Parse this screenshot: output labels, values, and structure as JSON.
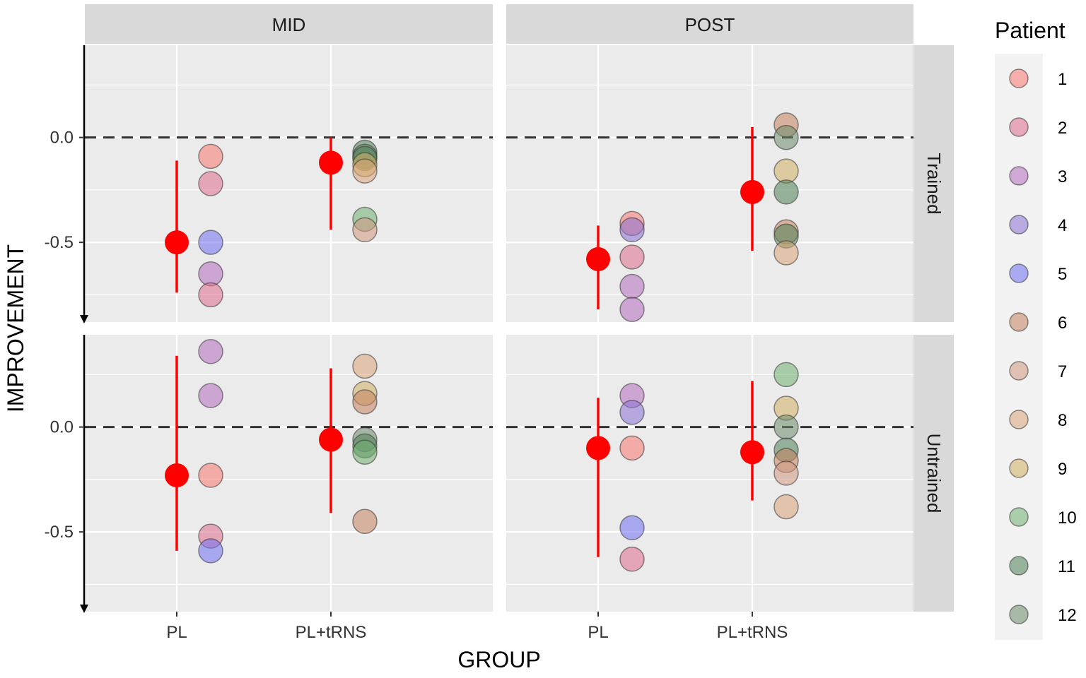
{
  "chart_data": {
    "type": "scatter",
    "xlabel": "GROUP",
    "ylabel": "IMPROVEMENT",
    "categories": [
      "PL",
      "PL+tRNS"
    ],
    "columns": [
      "MID",
      "POST"
    ],
    "rows": [
      "Trained",
      "Untrained"
    ],
    "yticks": [
      0.0,
      -0.5
    ],
    "ytick_labels": [
      "0.0",
      "-0.5"
    ],
    "reference_line": 0.0,
    "legend": {
      "title": "Patient",
      "position": "right",
      "entries": [
        {
          "label": "1",
          "color": "#F8766D"
        },
        {
          "label": "2",
          "color": "#DE6E8B"
        },
        {
          "label": "3",
          "color": "#B46CC0"
        },
        {
          "label": "4",
          "color": "#8B6FD6"
        },
        {
          "label": "5",
          "color": "#6F6FF2"
        },
        {
          "label": "6",
          "color": "#C4825F"
        },
        {
          "label": "7",
          "color": "#D09880"
        },
        {
          "label": "8",
          "color": "#D8A476"
        },
        {
          "label": "9",
          "color": "#D4AE62"
        },
        {
          "label": "10",
          "color": "#6FAE6F"
        },
        {
          "label": "11",
          "color": "#4F7F55"
        },
        {
          "label": "12",
          "color": "#6B8B6B"
        }
      ]
    },
    "panels": [
      {
        "column": "MID",
        "row": "Trained",
        "ylim": [
          -0.88,
          0.44
        ],
        "means": [
          {
            "group": "PL",
            "mean": -0.5,
            "lower": -0.74,
            "upper": -0.11
          },
          {
            "group": "PL+tRNS",
            "mean": -0.12,
            "lower": -0.44,
            "upper": 0.0
          }
        ],
        "points": [
          {
            "group": "PL",
            "patient": "1",
            "value": -0.09
          },
          {
            "group": "PL",
            "patient": "2",
            "value": -0.22
          },
          {
            "group": "PL",
            "patient": "5",
            "value": -0.5
          },
          {
            "group": "PL",
            "patient": "3",
            "value": -0.65
          },
          {
            "group": "PL",
            "patient": "2",
            "value": -0.75
          },
          {
            "group": "PL+tRNS",
            "patient": "11",
            "value": -0.07
          },
          {
            "group": "PL+tRNS",
            "patient": "12",
            "value": -0.09
          },
          {
            "group": "PL+tRNS",
            "patient": "11",
            "value": -0.1
          },
          {
            "group": "PL+tRNS",
            "patient": "9",
            "value": -0.13
          },
          {
            "group": "PL+tRNS",
            "patient": "8",
            "value": -0.16
          },
          {
            "group": "PL+tRNS",
            "patient": "10",
            "value": -0.39
          },
          {
            "group": "PL+tRNS",
            "patient": "7",
            "value": -0.44
          }
        ]
      },
      {
        "column": "POST",
        "row": "Trained",
        "ylim": [
          -0.88,
          0.44
        ],
        "means": [
          {
            "group": "PL",
            "mean": -0.58,
            "lower": -0.82,
            "upper": -0.42
          },
          {
            "group": "PL+tRNS",
            "mean": -0.26,
            "lower": -0.54,
            "upper": 0.05
          }
        ],
        "points": [
          {
            "group": "PL",
            "patient": "1",
            "value": -0.41
          },
          {
            "group": "PL",
            "patient": "4",
            "value": -0.44
          },
          {
            "group": "PL",
            "patient": "2",
            "value": -0.57
          },
          {
            "group": "PL",
            "patient": "3",
            "value": -0.71
          },
          {
            "group": "PL",
            "patient": "3",
            "value": -0.82
          },
          {
            "group": "PL+tRNS",
            "patient": "6",
            "value": 0.06
          },
          {
            "group": "PL+tRNS",
            "patient": "12",
            "value": 0.0
          },
          {
            "group": "PL+tRNS",
            "patient": "9",
            "value": -0.16
          },
          {
            "group": "PL+tRNS",
            "patient": "11",
            "value": -0.26
          },
          {
            "group": "PL+tRNS",
            "patient": "6",
            "value": -0.45
          },
          {
            "group": "PL+tRNS",
            "patient": "11",
            "value": -0.47
          },
          {
            "group": "PL+tRNS",
            "patient": "8",
            "value": -0.55
          }
        ]
      },
      {
        "column": "MID",
        "row": "Untrained",
        "ylim": [
          -0.88,
          0.44
        ],
        "means": [
          {
            "group": "PL",
            "mean": -0.23,
            "lower": -0.59,
            "upper": 0.34
          },
          {
            "group": "PL+tRNS",
            "mean": -0.06,
            "lower": -0.41,
            "upper": 0.28
          }
        ],
        "points": [
          {
            "group": "PL",
            "patient": "3",
            "value": 0.36
          },
          {
            "group": "PL",
            "patient": "3",
            "value": 0.15
          },
          {
            "group": "PL",
            "patient": "1",
            "value": -0.23
          },
          {
            "group": "PL",
            "patient": "2",
            "value": -0.52
          },
          {
            "group": "PL",
            "patient": "5",
            "value": -0.59
          },
          {
            "group": "PL+tRNS",
            "patient": "8",
            "value": 0.29
          },
          {
            "group": "PL+tRNS",
            "patient": "9",
            "value": 0.16
          },
          {
            "group": "PL+tRNS",
            "patient": "6",
            "value": 0.12
          },
          {
            "group": "PL+tRNS",
            "patient": "12",
            "value": -0.06
          },
          {
            "group": "PL+tRNS",
            "patient": "11",
            "value": -0.09
          },
          {
            "group": "PL+tRNS",
            "patient": "10",
            "value": -0.12
          },
          {
            "group": "PL+tRNS",
            "patient": "6",
            "value": -0.45
          }
        ]
      },
      {
        "column": "POST",
        "row": "Untrained",
        "ylim": [
          -0.88,
          0.44
        ],
        "means": [
          {
            "group": "PL",
            "mean": -0.1,
            "lower": -0.62,
            "upper": 0.14
          },
          {
            "group": "PL+tRNS",
            "mean": -0.12,
            "lower": -0.35,
            "upper": 0.22
          }
        ],
        "points": [
          {
            "group": "PL",
            "patient": "3",
            "value": 0.15
          },
          {
            "group": "PL",
            "patient": "4",
            "value": 0.07
          },
          {
            "group": "PL",
            "patient": "1",
            "value": -0.1
          },
          {
            "group": "PL",
            "patient": "5",
            "value": -0.48
          },
          {
            "group": "PL",
            "patient": "2",
            "value": -0.63
          },
          {
            "group": "PL+tRNS",
            "patient": "10",
            "value": 0.25
          },
          {
            "group": "PL+tRNS",
            "patient": "9",
            "value": 0.09
          },
          {
            "group": "PL+tRNS",
            "patient": "12",
            "value": 0.0
          },
          {
            "group": "PL+tRNS",
            "patient": "11",
            "value": -0.11
          },
          {
            "group": "PL+tRNS",
            "patient": "6",
            "value": -0.16
          },
          {
            "group": "PL+tRNS",
            "patient": "7",
            "value": -0.22
          },
          {
            "group": "PL+tRNS",
            "patient": "8",
            "value": -0.38
          }
        ]
      }
    ]
  }
}
